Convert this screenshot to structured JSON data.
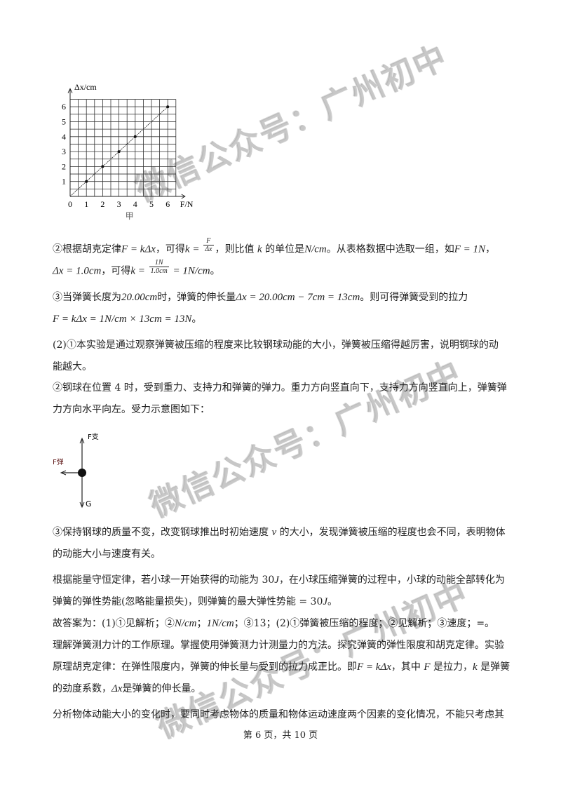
{
  "graph": {
    "y_label": "Δx/cm",
    "x_label": "F/N",
    "caption": "甲",
    "x_ticks": [
      "0",
      "1",
      "2",
      "3",
      "4",
      "5",
      "6"
    ],
    "y_ticks": [
      "1",
      "2",
      "3",
      "4",
      "5",
      "6"
    ],
    "xlim": [
      0,
      6.5
    ],
    "ylim": [
      0,
      6.5
    ],
    "grid_step": 0.5,
    "points": [
      [
        1,
        1
      ],
      [
        2,
        2
      ],
      [
        3,
        3
      ],
      [
        4,
        4
      ],
      [
        6,
        6
      ]
    ],
    "fit_line": [
      [
        0,
        0
      ],
      [
        6,
        6
      ]
    ]
  },
  "lines": [
    {
      "segs": [
        {
          "t": "②根据胡克定律"
        },
        {
          "t": "F = kΔx",
          "m": 1
        },
        {
          "t": "，可得"
        },
        {
          "t": "k = ",
          "m": 1
        },
        {
          "num": "F",
          "den": "Δx"
        },
        {
          "t": "，则比值 "
        },
        {
          "t": "k",
          "m": 1
        },
        {
          "t": " 的单位是"
        },
        {
          "t": "N/cm",
          "m": 1
        },
        {
          "t": "。从表格数据中选取一组，如"
        },
        {
          "t": "F = 1N",
          "m": 1
        },
        {
          "t": "，"
        }
      ]
    },
    {
      "segs": [
        {
          "t": "Δx = 1.0cm",
          "m": 1
        },
        {
          "t": "，可得"
        },
        {
          "t": "k = ",
          "m": 1
        },
        {
          "num": "1N",
          "den": "1.0cm"
        },
        {
          "t": " = 1N/cm",
          "m": 1
        },
        {
          "t": "。"
        }
      ]
    },
    {
      "segs": [
        {
          "t": "③当弹簧长度为"
        },
        {
          "t": "20.00cm",
          "m": 1
        },
        {
          "t": "时，弹簧的伸长量"
        },
        {
          "t": "Δx = 20.00cm − 7cm = 13cm",
          "m": 1
        },
        {
          "t": "。则可得弹簧受到的拉力"
        }
      ]
    },
    {
      "segs": [
        {
          "t": "F = kΔx = 1N/cm × 13cm = 13N",
          "m": 1
        },
        {
          "t": "。"
        }
      ]
    },
    {
      "segs": [
        {
          "t": "(2)①本实验是通过观察弹簧被压缩的程度来比较钢球动能的大小，弹簧被压缩得越厉害，说明钢球的动"
        }
      ]
    },
    {
      "segs": [
        {
          "t": "能越大。"
        }
      ]
    },
    {
      "segs": [
        {
          "t": "②钢球在位置 4 时，受到重力、支持力和弹簧的弹力。重力方向竖直向下，支持力方向竖直向上，弹簧弹"
        }
      ]
    },
    {
      "segs": [
        {
          "t": "力方向水平向左。受力示意图如下："
        }
      ]
    },
    {
      "segs": [
        {
          "t": "③保持钢球的质量不变，改变钢球推出时初始速度 "
        },
        {
          "t": "v",
          "m": 1
        },
        {
          "t": " 的大小，发现弹簧被压缩的程度也会不同，表明物体"
        }
      ]
    },
    {
      "segs": [
        {
          "t": "的动能大小与速度有关。"
        }
      ]
    },
    {
      "segs": [
        {
          "t": "根据能量守恒定律，若小球一开始获得的动能为 30"
        },
        {
          "t": "J",
          "m": 1
        },
        {
          "t": "，在小球压缩弹簧的过程中，小球的动能全部转化为"
        }
      ]
    },
    {
      "segs": [
        {
          "t": "弹簧的弹性势能(忽略能量损失)，则弹簧的最大弹性势能 = 30"
        },
        {
          "t": "J",
          "m": 1
        },
        {
          "t": "。"
        }
      ]
    },
    {
      "segs": [
        {
          "t": "故答案为：(1)①见解析；②"
        },
        {
          "t": "N/cm",
          "m": 1
        },
        {
          "t": "；"
        },
        {
          "t": "1N/cm",
          "m": 1
        },
        {
          "t": "；③13；(2)①弹簧被压缩的程度；②见解析；③速度；=。"
        }
      ]
    },
    {
      "segs": [
        {
          "t": "理解弹簧测力计的工作原理。掌握使用弹簧测力计测量力的方法。探究弹簧的弹性限度和胡克定律。实验"
        }
      ]
    },
    {
      "segs": [
        {
          "t": "原理胡克定律：在弹性限度内，弹簧的伸长量与受到的拉力成正比。即"
        },
        {
          "t": "F = kΔx",
          "m": 1
        },
        {
          "t": "，其中 "
        },
        {
          "t": "F",
          "m": 1
        },
        {
          "t": " 是拉力，"
        },
        {
          "t": "k",
          "m": 1
        },
        {
          "t": " 是弹簧"
        }
      ]
    },
    {
      "segs": [
        {
          "t": "的劲度系数，"
        },
        {
          "t": "Δx",
          "m": 1
        },
        {
          "t": "是弹簧的伸长量。"
        }
      ]
    },
    {
      "segs": [
        {
          "t": "分析物体动能大小的变化时，要同时考虑物体的质量和物体运动速度两个因素的变化情况，不能只考虑其"
        }
      ]
    }
  ],
  "force_diagram": {
    "support_label": "F支",
    "spring_label": "F弹",
    "gravity_label": "G"
  },
  "footer": "第 6 页，共 10 页",
  "watermark": "微信公众号：广州初中"
}
